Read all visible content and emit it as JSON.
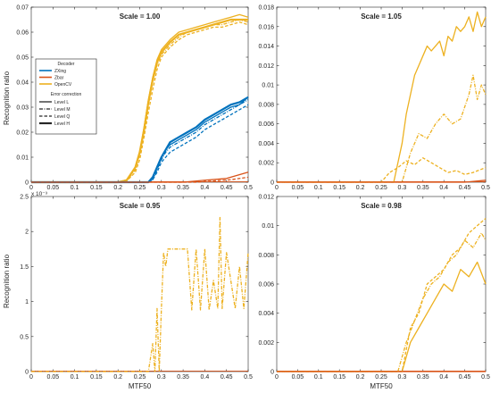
{
  "figure_ylabel": "Recognition ratio",
  "figure_xlabel": "MTF50",
  "colors": {
    "zxing": "#0072BD",
    "zbar": "#D95319",
    "opencv": "#EDB120",
    "axis": "#262626"
  },
  "legend": {
    "decoder_title": "Decoder",
    "decoders": [
      {
        "label": "ZXing",
        "color": "#0072BD"
      },
      {
        "label": "Zbar",
        "color": "#D95319"
      },
      {
        "label": "OpenCV",
        "color": "#EDB120"
      }
    ],
    "ec_title": "Error correction",
    "levels": [
      {
        "label": "Level L",
        "dash": "solid"
      },
      {
        "label": "Level M",
        "dash": "dashdot"
      },
      {
        "label": "Level Q",
        "dash": "dashed"
      },
      {
        "label": "Level H",
        "dash": "thick"
      }
    ]
  },
  "chart_data": [
    {
      "type": "line",
      "title": "Scale = 1.00",
      "xlim": [
        0,
        0.5
      ],
      "ylim": [
        0,
        0.07
      ],
      "x_ticks": [
        "0",
        "0.05",
        "0.1",
        "0.15",
        "0.2",
        "0.25",
        "0.3",
        "0.35",
        "0.4",
        "0.45",
        "0.5"
      ],
      "y_ticks": [
        "0",
        "0.01",
        "0.02",
        "0.03",
        "0.04",
        "0.05",
        "0.06",
        "0.07"
      ],
      "y_tick_values": [
        0,
        0.01,
        0.02,
        0.03,
        0.04,
        0.05,
        0.06,
        0.07
      ],
      "exponent": "",
      "xlabel": "",
      "series": [
        {
          "decoder": "opencv",
          "level": "solid",
          "x": [
            0.2,
            0.22,
            0.24,
            0.25,
            0.26,
            0.27,
            0.28,
            0.29,
            0.3,
            0.32,
            0.34,
            0.36,
            0.38,
            0.4,
            0.42,
            0.44,
            0.46,
            0.48,
            0.5
          ],
          "y": [
            0,
            0.001,
            0.006,
            0.012,
            0.022,
            0.033,
            0.042,
            0.049,
            0.053,
            0.057,
            0.06,
            0.061,
            0.062,
            0.063,
            0.064,
            0.065,
            0.066,
            0.067,
            0.066
          ]
        },
        {
          "decoder": "opencv",
          "level": "dashdot",
          "x": [
            0.2,
            0.22,
            0.24,
            0.25,
            0.26,
            0.27,
            0.28,
            0.29,
            0.3,
            0.32,
            0.34,
            0.36,
            0.38,
            0.4,
            0.42,
            0.44,
            0.46,
            0.48,
            0.5
          ],
          "y": [
            0,
            0.0005,
            0.005,
            0.011,
            0.02,
            0.031,
            0.04,
            0.047,
            0.051,
            0.055,
            0.058,
            0.06,
            0.061,
            0.062,
            0.063,
            0.063,
            0.064,
            0.065,
            0.064
          ]
        },
        {
          "decoder": "opencv",
          "level": "dashed",
          "x": [
            0.2,
            0.22,
            0.24,
            0.25,
            0.26,
            0.27,
            0.28,
            0.29,
            0.3,
            0.32,
            0.34,
            0.36,
            0.38,
            0.4,
            0.42,
            0.44,
            0.46,
            0.48,
            0.5
          ],
          "y": [
            0,
            0.0005,
            0.004,
            0.009,
            0.018,
            0.028,
            0.037,
            0.045,
            0.05,
            0.054,
            0.057,
            0.059,
            0.06,
            0.061,
            0.062,
            0.062,
            0.063,
            0.064,
            0.063
          ]
        },
        {
          "decoder": "opencv",
          "level": "thick",
          "x": [
            0.2,
            0.22,
            0.24,
            0.25,
            0.26,
            0.27,
            0.28,
            0.29,
            0.3,
            0.32,
            0.34,
            0.36,
            0.38,
            0.4,
            0.42,
            0.44,
            0.46,
            0.48,
            0.5
          ],
          "y": [
            0,
            0.0008,
            0.006,
            0.012,
            0.021,
            0.032,
            0.041,
            0.048,
            0.052,
            0.056,
            0.059,
            0.06,
            0.061,
            0.062,
            0.063,
            0.064,
            0.065,
            0.065,
            0.065
          ]
        },
        {
          "decoder": "zxing",
          "level": "solid",
          "x": [
            0.27,
            0.28,
            0.29,
            0.3,
            0.31,
            0.32,
            0.34,
            0.36,
            0.38,
            0.4,
            0.42,
            0.44,
            0.46,
            0.48,
            0.5
          ],
          "y": [
            0,
            0.002,
            0.006,
            0.01,
            0.013,
            0.015,
            0.017,
            0.019,
            0.021,
            0.024,
            0.026,
            0.028,
            0.03,
            0.031,
            0.034
          ]
        },
        {
          "decoder": "zxing",
          "level": "dashdot",
          "x": [
            0.27,
            0.28,
            0.29,
            0.3,
            0.31,
            0.32,
            0.34,
            0.36,
            0.38,
            0.4,
            0.42,
            0.44,
            0.46,
            0.48,
            0.5
          ],
          "y": [
            0,
            0.001,
            0.005,
            0.009,
            0.012,
            0.014,
            0.016,
            0.018,
            0.02,
            0.023,
            0.025,
            0.027,
            0.029,
            0.031,
            0.033
          ]
        },
        {
          "decoder": "zxing",
          "level": "dashed",
          "x": [
            0.27,
            0.28,
            0.29,
            0.3,
            0.31,
            0.32,
            0.34,
            0.36,
            0.38,
            0.4,
            0.42,
            0.44,
            0.46,
            0.48,
            0.5
          ],
          "y": [
            0,
            0.001,
            0.004,
            0.008,
            0.01,
            0.012,
            0.014,
            0.016,
            0.018,
            0.021,
            0.023,
            0.025,
            0.027,
            0.029,
            0.031
          ]
        },
        {
          "decoder": "zxing",
          "level": "thick",
          "x": [
            0.27,
            0.28,
            0.29,
            0.3,
            0.31,
            0.32,
            0.34,
            0.36,
            0.38,
            0.4,
            0.42,
            0.44,
            0.46,
            0.48,
            0.5
          ],
          "y": [
            0,
            0.002,
            0.006,
            0.01,
            0.013,
            0.016,
            0.018,
            0.02,
            0.022,
            0.025,
            0.027,
            0.029,
            0.031,
            0.032,
            0.034
          ]
        },
        {
          "decoder": "zbar",
          "level": "solid",
          "x": [
            0,
            0.35,
            0.4,
            0.45,
            0.5
          ],
          "y": [
            0,
            0,
            0.0008,
            0.0015,
            0.004
          ]
        },
        {
          "decoder": "zbar",
          "level": "dashed",
          "x": [
            0,
            0.38,
            0.42,
            0.46,
            0.5
          ],
          "y": [
            0,
            0,
            0.0005,
            0.001,
            0.002
          ]
        }
      ]
    },
    {
      "type": "line",
      "title": "Scale = 1.05",
      "xlim": [
        0,
        0.5
      ],
      "ylim": [
        0,
        0.018
      ],
      "x_ticks": [
        "0",
        "0.05",
        "0.1",
        "0.15",
        "0.2",
        "0.25",
        "0.3",
        "0.35",
        "0.4",
        "0.45",
        "0.5"
      ],
      "y_ticks": [
        "0",
        "0.002",
        "0.004",
        "0.006",
        "0.008",
        "0.01",
        "0.012",
        "0.014",
        "0.016",
        "0.018"
      ],
      "y_tick_values": [
        0,
        0.002,
        0.004,
        0.006,
        0.008,
        0.01,
        0.012,
        0.014,
        0.016,
        0.018
      ],
      "exponent": "",
      "xlabel": "",
      "series": [
        {
          "decoder": "opencv",
          "level": "solid",
          "x": [
            0.28,
            0.29,
            0.3,
            0.31,
            0.32,
            0.33,
            0.34,
            0.35,
            0.36,
            0.37,
            0.38,
            0.39,
            0.4,
            0.41,
            0.42,
            0.43,
            0.44,
            0.45,
            0.46,
            0.47,
            0.48,
            0.49,
            0.5
          ],
          "y": [
            0,
            0.002,
            0.004,
            0.007,
            0.009,
            0.011,
            0.012,
            0.013,
            0.014,
            0.0135,
            0.014,
            0.0145,
            0.013,
            0.015,
            0.0145,
            0.016,
            0.0155,
            0.016,
            0.017,
            0.0155,
            0.0175,
            0.016,
            0.017
          ]
        },
        {
          "decoder": "opencv",
          "level": "dashdot",
          "x": [
            0.3,
            0.32,
            0.34,
            0.36,
            0.38,
            0.4,
            0.42,
            0.44,
            0.46,
            0.47,
            0.48,
            0.49,
            0.5
          ],
          "y": [
            0,
            0.003,
            0.005,
            0.0045,
            0.006,
            0.007,
            0.006,
            0.0065,
            0.009,
            0.011,
            0.0085,
            0.01,
            0.009
          ]
        },
        {
          "decoder": "opencv",
          "level": "dashed",
          "x": [
            0.25,
            0.27,
            0.29,
            0.31,
            0.33,
            0.35,
            0.37,
            0.39,
            0.41,
            0.43,
            0.45,
            0.47,
            0.5
          ],
          "y": [
            0,
            0.001,
            0.0015,
            0.0022,
            0.0018,
            0.0025,
            0.002,
            0.0015,
            0.001,
            0.0012,
            0.0008,
            0.001,
            0.0015
          ]
        },
        {
          "decoder": "zbar",
          "level": "solid",
          "x": [
            0.4,
            0.45,
            0.5
          ],
          "y": [
            0,
            0,
            0.0002
          ]
        }
      ]
    },
    {
      "type": "line",
      "title": "Scale = 0.95",
      "xlim": [
        0,
        0.5
      ],
      "ylim": [
        0,
        0.0025
      ],
      "x_ticks": [
        "0",
        "0.05",
        "0.1",
        "0.15",
        "0.2",
        "0.25",
        "0.3",
        "0.35",
        "0.4",
        "0.45",
        "0.5"
      ],
      "y_ticks": [
        "0",
        "0.5",
        "1",
        "1.5",
        "2",
        "2.5"
      ],
      "y_tick_values": [
        0,
        0.0005,
        0.001,
        0.0015,
        0.002,
        0.0025
      ],
      "exponent": "x 10⁻³",
      "xlabel": "MTF50",
      "series": [
        {
          "decoder": "opencv",
          "level": "dashdot",
          "x": [
            0.27,
            0.28,
            0.285,
            0.29,
            0.295,
            0.3,
            0.305,
            0.31,
            0.315,
            0.32,
            0.33,
            0.34,
            0.35,
            0.36,
            0.37,
            0.38,
            0.39,
            0.4,
            0.41,
            0.42,
            0.43,
            0.435,
            0.44,
            0.45,
            0.46,
            0.47,
            0.48,
            0.49,
            0.5
          ],
          "y": [
            0,
            0.0004,
            0,
            0.0009,
            0,
            0.0009,
            0.0017,
            0.0015,
            0.00175,
            0.00175,
            0.00175,
            0.00175,
            0.00175,
            0.00175,
            0.00088,
            0.00175,
            0.00088,
            0.00175,
            0.00088,
            0.0013,
            0.0009,
            0.0022,
            0.0009,
            0.0017,
            0.0013,
            0.0009,
            0.0015,
            0.0009,
            0.0017
          ]
        }
      ]
    },
    {
      "type": "line",
      "title": "Scale = 0.98",
      "xlim": [
        0,
        0.5
      ],
      "ylim": [
        0,
        0.012
      ],
      "x_ticks": [
        "0",
        "0.05",
        "0.1",
        "0.15",
        "0.2",
        "0.25",
        "0.3",
        "0.35",
        "0.4",
        "0.45",
        "0.5"
      ],
      "y_ticks": [
        "0",
        "0.002",
        "0.004",
        "0.006",
        "0.008",
        "0.01",
        "0.012"
      ],
      "y_tick_values": [
        0,
        0.002,
        0.004,
        0.006,
        0.008,
        0.01,
        0.012
      ],
      "exponent": "",
      "xlabel": "MTF50",
      "series": [
        {
          "decoder": "opencv",
          "level": "solid",
          "x": [
            0.3,
            0.32,
            0.34,
            0.36,
            0.38,
            0.4,
            0.42,
            0.44,
            0.46,
            0.48,
            0.5
          ],
          "y": [
            0,
            0.002,
            0.003,
            0.004,
            0.005,
            0.006,
            0.0055,
            0.007,
            0.0065,
            0.0075,
            0.006
          ]
        },
        {
          "decoder": "opencv",
          "level": "dashdot",
          "x": [
            0.29,
            0.31,
            0.33,
            0.35,
            0.37,
            0.39,
            0.41,
            0.43,
            0.45,
            0.47,
            0.49,
            0.5
          ],
          "y": [
            0,
            0.002,
            0.0035,
            0.005,
            0.006,
            0.0065,
            0.0075,
            0.008,
            0.009,
            0.0085,
            0.0095,
            0.009
          ]
        },
        {
          "decoder": "opencv",
          "level": "dashed",
          "x": [
            0.3,
            0.32,
            0.34,
            0.36,
            0.38,
            0.4,
            0.42,
            0.44,
            0.46,
            0.48,
            0.5
          ],
          "y": [
            0,
            0.003,
            0.004,
            0.006,
            0.0065,
            0.007,
            0.008,
            0.0085,
            0.0095,
            0.01,
            0.0105
          ]
        },
        {
          "decoder": "zbar",
          "level": "solid",
          "x": [
            0.3,
            0.35,
            0.4,
            0.45,
            0.5
          ],
          "y": [
            0,
            0,
            0,
            0,
            0
          ]
        }
      ]
    }
  ]
}
